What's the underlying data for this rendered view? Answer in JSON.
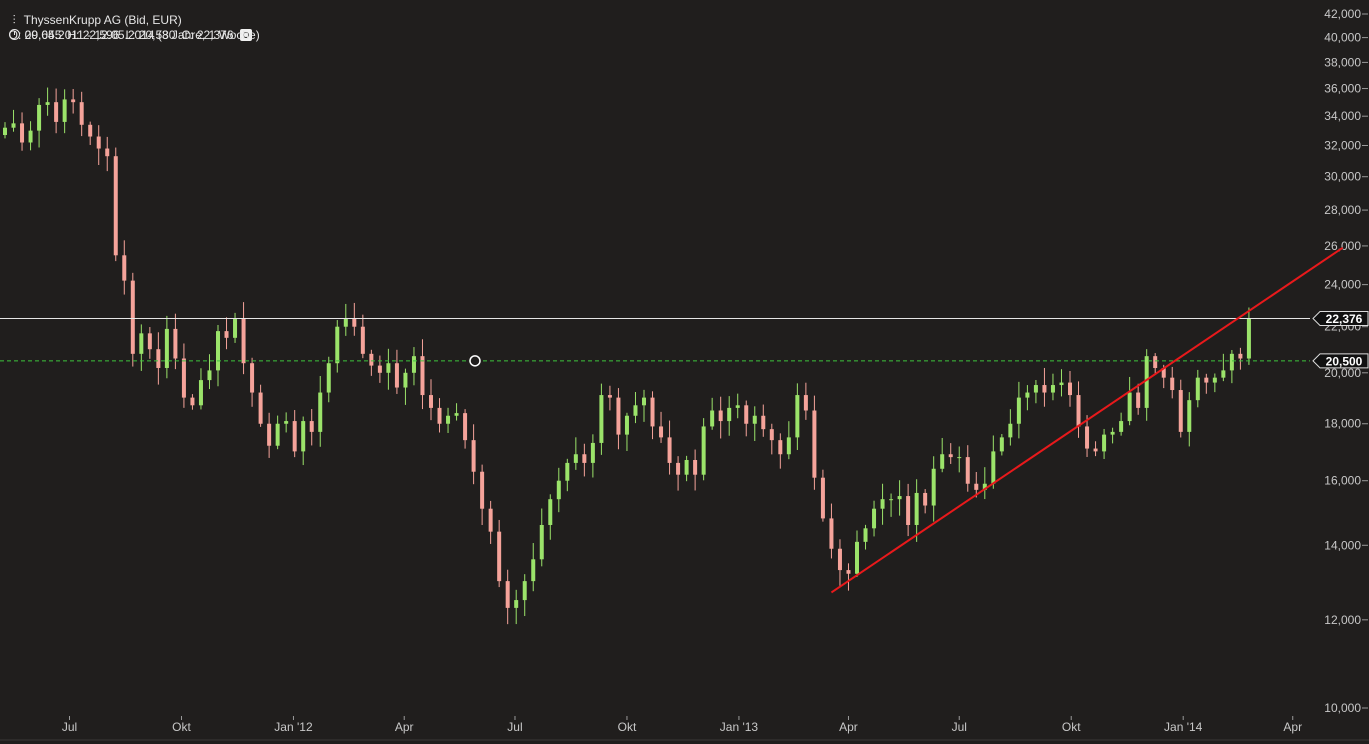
{
  "header": {
    "instrument": "ThyssenKrupp AG (Bid, EUR)",
    "open": "O: 20,645",
    "high": "H: 22,596",
    "low": "L: 20,580",
    "close": "C: 22,376",
    "period": "09.05.2011 - 12.05.2014 (3 Jahre, 1 Woche)",
    "bars_icon": "candle-icon",
    "clock_icon": "clock-icon",
    "settings_icon": "settings-icon"
  },
  "colors": {
    "background": "#201e1d",
    "up": "#9be36a",
    "down": "#f5a39a",
    "trendline": "#e8191b",
    "support": "#3cc43c",
    "last_price_line": "#e6e6e6"
  },
  "chart_data": {
    "type": "candlestick",
    "scale": "log",
    "ylim": [
      10,
      42
    ],
    "y_ticks": [
      10,
      12,
      14,
      16,
      18,
      20,
      22,
      24,
      26,
      28,
      30,
      32,
      34,
      36,
      38,
      40,
      42
    ],
    "y_tick_labels": [
      "10,000",
      "12,000",
      "14,000",
      "16,000",
      "18,000",
      "20,000",
      "22,000",
      "24,000",
      "26,000",
      "28,000",
      "30,000",
      "32,000",
      "34,000",
      "36,000",
      "38,000",
      "40,000",
      "42,000"
    ],
    "x_ticks": [
      {
        "label": "Jul",
        "date": "2011-07-01"
      },
      {
        "label": "Okt",
        "date": "2011-10-01"
      },
      {
        "label": "Jan '12",
        "date": "2012-01-01"
      },
      {
        "label": "Apr",
        "date": "2012-04-01"
      },
      {
        "label": "Jul",
        "date": "2012-07-01"
      },
      {
        "label": "Okt",
        "date": "2012-10-01"
      },
      {
        "label": "Jan '13",
        "date": "2013-01-01"
      },
      {
        "label": "Apr",
        "date": "2013-04-01"
      },
      {
        "label": "Jul",
        "date": "2013-07-01"
      },
      {
        "label": "Okt",
        "date": "2013-10-01"
      },
      {
        "label": "Jan '14",
        "date": "2014-01-01"
      },
      {
        "label": "Apr",
        "date": "2014-04-01"
      }
    ],
    "date_range": [
      "2011-05-09",
      "2014-05-12"
    ],
    "weekly_close": [
      33.2,
      33.5,
      32.2,
      33.0,
      34.8,
      35.0,
      33.6,
      35.2,
      35.0,
      33.4,
      32.6,
      31.8,
      31.3,
      25.5,
      24.2,
      20.8,
      21.7,
      21.0,
      20.2,
      21.9,
      20.6,
      19.0,
      18.7,
      19.7,
      20.1,
      21.8,
      21.5,
      22.4,
      20.4,
      19.2,
      18.0,
      17.2,
      18.0,
      18.1,
      17.0,
      18.1,
      17.7,
      19.2,
      20.4,
      22.0,
      22.4,
      22.0,
      20.8,
      20.3,
      20.0,
      20.4,
      19.4,
      20.0,
      20.7,
      19.1,
      18.6,
      18.0,
      18.3,
      18.4,
      17.4,
      16.3,
      15.1,
      14.4,
      13.0,
      12.3,
      12.5,
      13.0,
      13.6,
      14.6,
      15.4,
      16.0,
      16.6,
      16.9,
      16.6,
      17.3,
      19.1,
      19.0,
      17.6,
      18.3,
      18.7,
      19.0,
      17.9,
      17.5,
      16.6,
      16.2,
      16.7,
      16.2,
      17.9,
      18.5,
      18.1,
      18.6,
      18.7,
      18.0,
      18.3,
      17.8,
      17.4,
      16.9,
      17.5,
      19.1,
      18.5,
      16.1,
      14.8,
      13.9,
      13.3,
      13.2,
      14.1,
      14.5,
      15.1,
      15.4,
      15.4,
      15.5,
      14.6,
      15.6,
      15.2,
      16.4,
      16.9,
      16.8,
      16.8,
      15.9,
      15.7,
      15.9,
      17.0,
      17.5,
      18.0,
      19.0,
      19.2,
      19.5,
      19.2,
      19.5,
      19.6,
      19.1,
      17.9,
      17.1,
      17.0,
      17.6,
      17.7,
      18.1,
      19.2,
      18.6,
      20.7,
      20.2,
      19.8,
      19.3,
      17.7,
      18.9,
      19.8,
      19.6,
      19.8,
      20.1,
      20.8,
      20.6,
      22.4
    ],
    "annotations": [
      {
        "type": "horizontal_line",
        "name": "last-price",
        "value": 22.376,
        "label": "22,376"
      },
      {
        "type": "horizontal_line",
        "name": "support",
        "value": 20.5,
        "label": "20,500",
        "style": "dashed"
      },
      {
        "type": "trendline",
        "from": {
          "date": "2013-03-18",
          "value": 12.7
        },
        "to": {
          "date": "2014-05-12",
          "value": 25.9
        }
      }
    ],
    "grid": false,
    "legend": "none"
  }
}
